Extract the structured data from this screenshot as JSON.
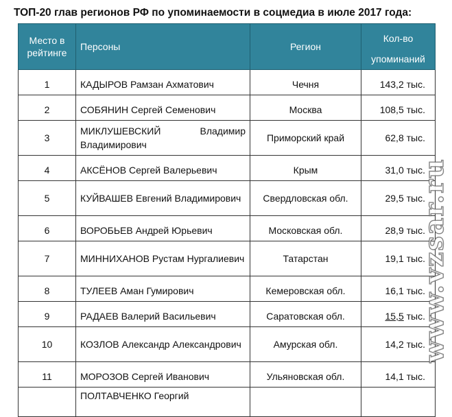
{
  "title": "ТОП-20 глав регионов РФ по упоминаемости в соцмедиа в июле 2017 года:",
  "table": {
    "headers": {
      "rank_line1": "Место в",
      "rank_line2": "рейтинге",
      "person": "Персоны",
      "region": "Регион",
      "count_line1": "Кол-во",
      "count_line2": "упоминаний"
    },
    "rows": [
      {
        "rank": "1",
        "surname": "КАДЫРОВ Рамзан Ахматович",
        "region": "Чечня",
        "count": "143,2 тыс."
      },
      {
        "rank": "2",
        "surname": "СОБЯНИН Сергей Семенович",
        "region": "Москва",
        "count": "108,5 тыс."
      },
      {
        "rank": "3",
        "surname": "МИКЛУШЕВСКИЙ Владимир",
        "patronymic": "Владимирович",
        "region": "Приморский край",
        "count": "62,8 тыс."
      },
      {
        "rank": "4",
        "surname": "АКСЁНОВ Сергей Валерьевич",
        "region": "Крым",
        "count": "31,0 тыс."
      },
      {
        "rank": "5",
        "surname": "КУЙВАШЕВ Евгений",
        "patronymic": "Владимирович",
        "region": "Свердловская обл.",
        "count": "29,5 тыс."
      },
      {
        "rank": "6",
        "surname": "ВОРОБЬЕВ Андрей Юрьевич",
        "region": "Московская обл.",
        "count": "28,9 тыс."
      },
      {
        "rank": "7",
        "surname": "МИННИХАНОВ Рустам",
        "patronymic": "Нургалиевич",
        "region": "Татарстан",
        "count": "19,1 тыс."
      },
      {
        "rank": "8",
        "surname": "ТУЛЕЕВ Аман Гумирович",
        "region": "Кемеровская обл.",
        "count": "16,1 тыс."
      },
      {
        "rank": "9",
        "surname": "РАДАЕВ Валерий Васильевич",
        "region": "Саратовская обл.",
        "count_value": "15,5",
        "count_unit": " тыс."
      },
      {
        "rank": "10",
        "surname": "КОЗЛОВ Александр",
        "patronymic": "Александрович",
        "region": "Амурская обл.",
        "count": "14,2 тыс."
      },
      {
        "rank": "11",
        "surname": "МОРОЗОВ Сергей Иванович",
        "region": "Ульяновская обл.",
        "count": "14,1 тыс."
      },
      {
        "rank": "",
        "surname": "ПОЛТАВЧЕНКО Георгий",
        "region": "",
        "count": ""
      }
    ]
  },
  "watermark": "www.vzsar.ru"
}
